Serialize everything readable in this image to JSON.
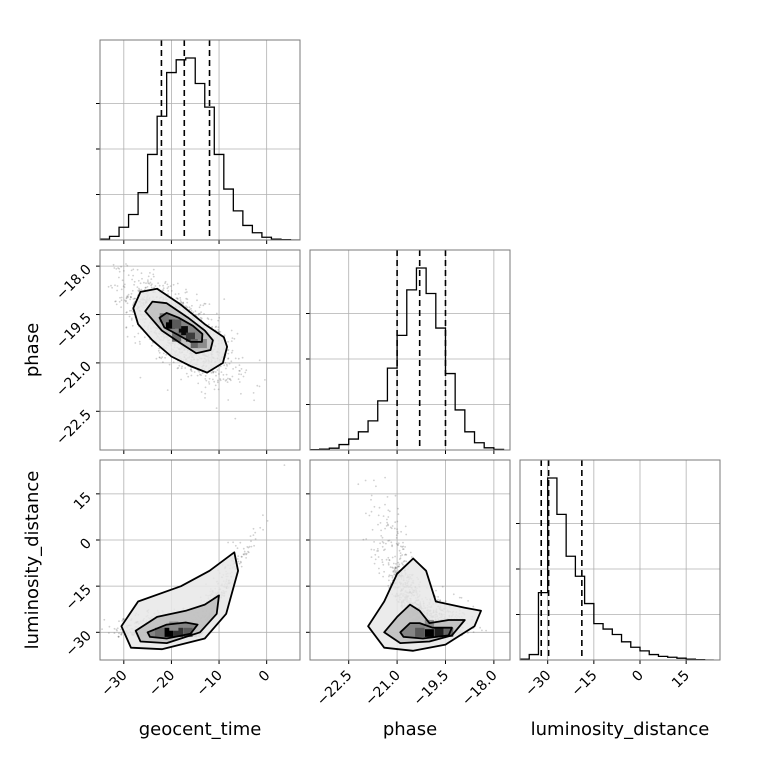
{
  "chart_data": {
    "type": "corner",
    "grid": true,
    "parameters": [
      {
        "name": "geocent_time",
        "label": "geocent_time",
        "ticks": [
          -30,
          -20,
          -10,
          0
        ],
        "range": [
          -35,
          7
        ]
      },
      {
        "name": "phase",
        "label": "phase",
        "ticks": [
          -22.5,
          -21.0,
          -19.5,
          -18.0
        ],
        "tick_labels": [
          "−22.5",
          "−21.0",
          "−19.5",
          "−18.0"
        ],
        "range": [
          -23.7,
          -17.5
        ]
      },
      {
        "name": "luminosity_distance",
        "label": "luminosity_distance",
        "ticks": [
          -30,
          -15,
          0,
          15
        ],
        "range": [
          -39,
          26
        ]
      }
    ],
    "tick_labels_text": {
      "geocent_time": [
        "−30",
        "−20",
        "−10",
        "0"
      ],
      "phase": [
        "−22.5",
        "−21.0",
        "−19.5",
        "−18.0"
      ],
      "luminosity_distance": [
        "−30",
        "−15",
        "0",
        "15"
      ]
    },
    "histograms": [
      {
        "param": "geocent_time",
        "bin_edges": [
          -35,
          -33,
          -31,
          -29,
          -27,
          -25,
          -23,
          -21,
          -19,
          -17,
          -15,
          -13,
          -11,
          -9,
          -7,
          -5,
          -3,
          -1,
          1,
          3,
          5,
          7
        ],
        "counts": [
          0.005,
          0.02,
          0.07,
          0.14,
          0.26,
          0.47,
          0.68,
          0.92,
          0.99,
          1.0,
          0.86,
          0.73,
          0.47,
          0.28,
          0.16,
          0.08,
          0.04,
          0.015,
          0.005,
          0.002,
          0.0
        ],
        "quantiles": [
          -22.1,
          -17.3,
          -12.0
        ]
      },
      {
        "param": "phase",
        "bin_edges": [
          -23.7,
          -23.4,
          -23.1,
          -22.8,
          -22.5,
          -22.2,
          -21.9,
          -21.6,
          -21.3,
          -21.0,
          -20.7,
          -20.4,
          -20.1,
          -19.8,
          -19.5,
          -19.2,
          -18.9,
          -18.6,
          -18.3,
          -18.0,
          -17.7
        ],
        "counts": [
          0.002,
          0.005,
          0.01,
          0.03,
          0.06,
          0.1,
          0.16,
          0.27,
          0.45,
          0.63,
          0.88,
          1.0,
          0.86,
          0.67,
          0.42,
          0.22,
          0.1,
          0.04,
          0.012,
          0.003
        ],
        "quantiles": [
          -21.0,
          -20.3,
          -19.5
        ]
      },
      {
        "param": "luminosity_distance",
        "bin_edges": [
          -39,
          -36,
          -33,
          -30,
          -27,
          -24,
          -21,
          -18,
          -15,
          -12,
          -9,
          -6,
          -3,
          0,
          3,
          6,
          9,
          12,
          15,
          18,
          21,
          24
        ],
        "counts": [
          0.005,
          0.03,
          0.37,
          1.0,
          0.8,
          0.57,
          0.46,
          0.31,
          0.2,
          0.17,
          0.14,
          0.1,
          0.07,
          0.05,
          0.03,
          0.02,
          0.015,
          0.01,
          0.005,
          0.002,
          0.0
        ],
        "quantiles": [
          -32.1,
          -29.7,
          -18.9
        ]
      }
    ],
    "pairs": [
      {
        "x_param": "geocent_time",
        "y_param": "phase",
        "contours": [
          [
            [
              -28,
              -19.3
            ],
            [
              -26.5,
              -18.8
            ],
            [
              -23,
              -18.7
            ],
            [
              -18,
              -19.2
            ],
            [
              -13,
              -19.8
            ],
            [
              -9,
              -20.2
            ],
            [
              -8.3,
              -20.5
            ],
            [
              -9.2,
              -21.0
            ],
            [
              -12.5,
              -21.3
            ],
            [
              -16,
              -21.1
            ],
            [
              -20,
              -20.8
            ],
            [
              -24,
              -20.3
            ],
            [
              -27,
              -19.8
            ]
          ],
          [
            [
              -25.5,
              -19.4
            ],
            [
              -24,
              -19.1
            ],
            [
              -21,
              -19.15
            ],
            [
              -16.5,
              -19.6
            ],
            [
              -13,
              -20.0
            ],
            [
              -11.3,
              -20.3
            ],
            [
              -11.8,
              -20.6
            ],
            [
              -14.8,
              -20.7
            ],
            [
              -18,
              -20.4
            ],
            [
              -22,
              -20.0
            ]
          ],
          [
            [
              -22.5,
              -19.6
            ],
            [
              -21,
              -19.45
            ],
            [
              -18.5,
              -19.6
            ],
            [
              -15.5,
              -19.85
            ],
            [
              -13.5,
              -20.1
            ],
            [
              -13.6,
              -20.35
            ],
            [
              -16,
              -20.35
            ],
            [
              -19,
              -20.1
            ],
            [
              -21.5,
              -19.9
            ]
          ]
        ],
        "density_cells": [
          {
            "x": -20.2,
            "y": -19.8,
            "v": 1.0
          },
          {
            "x": -17.5,
            "y": -20.0,
            "v": 0.95
          },
          {
            "x": -16.0,
            "y": -20.2,
            "v": 0.7
          },
          {
            "x": -18.9,
            "y": -19.8,
            "v": 0.55
          },
          {
            "x": -15.0,
            "y": -20.4,
            "v": 0.5
          },
          {
            "x": -21.5,
            "y": -19.6,
            "v": 0.4
          },
          {
            "x": -18.9,
            "y": -20.2,
            "v": 0.45
          },
          {
            "x": -13.5,
            "y": -20.4,
            "v": 0.3
          }
        ]
      },
      {
        "x_param": "geocent_time",
        "y_param": "luminosity_distance",
        "contours": [
          [
            [
              -30.5,
              -28
            ],
            [
              -27,
              -20
            ],
            [
              -18,
              -15
            ],
            [
              -12,
              -10
            ],
            [
              -6.8,
              -4
            ],
            [
              -6.0,
              -10
            ],
            [
              -8.5,
              -24
            ],
            [
              -13,
              -32
            ],
            [
              -22,
              -35.5
            ],
            [
              -28.5,
              -35
            ]
          ],
          [
            [
              -27.5,
              -29.5
            ],
            [
              -23,
              -25
            ],
            [
              -17,
              -23
            ],
            [
              -13,
              -21
            ],
            [
              -10,
              -18
            ],
            [
              -10.5,
              -24
            ],
            [
              -14,
              -30
            ],
            [
              -21,
              -33.5
            ],
            [
              -26.5,
              -33
            ]
          ],
          [
            [
              -25,
              -30
            ],
            [
              -21,
              -27.5
            ],
            [
              -17,
              -26.8
            ],
            [
              -14.5,
              -27.5
            ],
            [
              -16,
              -30.5
            ],
            [
              -21,
              -32
            ],
            [
              -24.5,
              -31.5
            ]
          ]
        ],
        "density_cells": [
          {
            "x": -20.5,
            "y": -30,
            "v": 1.0
          },
          {
            "x": -18.5,
            "y": -30,
            "v": 0.75
          },
          {
            "x": -16.5,
            "y": -30,
            "v": 0.55
          },
          {
            "x": -22.5,
            "y": -30,
            "v": 0.45
          },
          {
            "x": -19.5,
            "y": -28,
            "v": 0.3
          }
        ]
      },
      {
        "x_param": "phase",
        "y_param": "luminosity_distance",
        "contours": [
          [
            [
              -21.9,
              -28
            ],
            [
              -21.4,
              -20
            ],
            [
              -21.0,
              -11
            ],
            [
              -20.5,
              -6
            ],
            [
              -20.1,
              -10
            ],
            [
              -19.8,
              -20
            ],
            [
              -18.9,
              -22
            ],
            [
              -18.4,
              -23
            ],
            [
              -18.6,
              -28
            ],
            [
              -19.5,
              -34
            ],
            [
              -20.5,
              -36
            ],
            [
              -21.4,
              -35
            ]
          ],
          [
            [
              -21.4,
              -30
            ],
            [
              -21.0,
              -25
            ],
            [
              -20.6,
              -21
            ],
            [
              -20.3,
              -23
            ],
            [
              -20.0,
              -27
            ],
            [
              -19.4,
              -26
            ],
            [
              -18.9,
              -26
            ],
            [
              -19.3,
              -31
            ],
            [
              -20.0,
              -33
            ],
            [
              -20.9,
              -33.5
            ]
          ],
          [
            [
              -20.9,
              -30
            ],
            [
              -20.6,
              -27
            ],
            [
              -20.3,
              -27
            ],
            [
              -19.9,
              -28.5
            ],
            [
              -19.3,
              -28.5
            ],
            [
              -19.4,
              -31
            ],
            [
              -20.2,
              -32
            ],
            [
              -20.8,
              -31.5
            ]
          ]
        ],
        "density_cells": [
          {
            "x": -20.0,
            "y": -30,
            "v": 1.0
          },
          {
            "x": -19.7,
            "y": -30,
            "v": 0.85
          },
          {
            "x": -20.3,
            "y": -30,
            "v": 0.55
          },
          {
            "x": -19.4,
            "y": -30,
            "v": 0.5
          },
          {
            "x": -20.0,
            "y": -27.5,
            "v": 0.3
          }
        ]
      }
    ]
  }
}
